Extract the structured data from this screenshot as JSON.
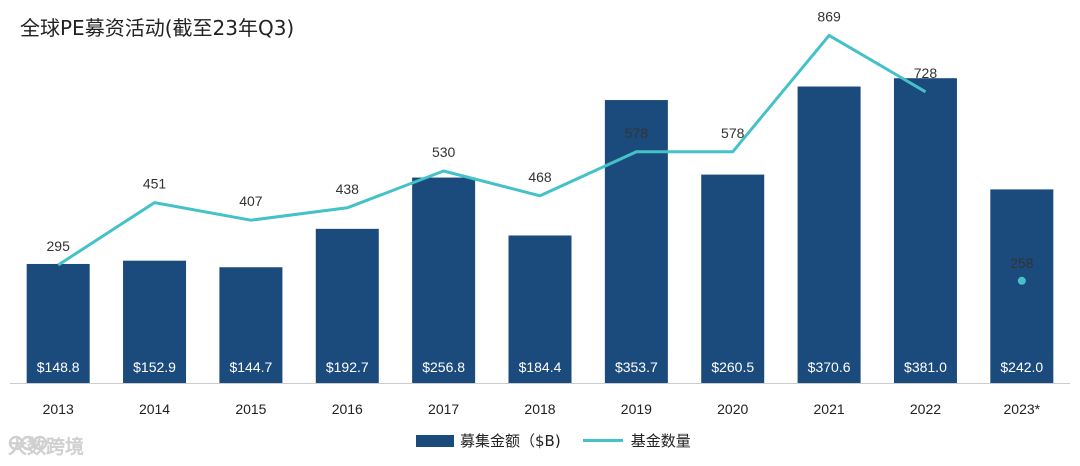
{
  "title": "全球PE募资活动(截至23年Q3)",
  "colors": {
    "bar": "#1b4b7c",
    "line": "#45c1c9",
    "label": "#333333"
  },
  "watermark": {
    "text": "大数跨境",
    "icon": "brand-logo-icon"
  },
  "chart_data": {
    "type": "bar",
    "title": "全球PE募资活动(截至23年Q3)",
    "categories": [
      "2013",
      "2014",
      "2015",
      "2016",
      "2017",
      "2018",
      "2019",
      "2020",
      "2021",
      "2022",
      "2023*"
    ],
    "series": [
      {
        "name": "募集金额（$B)",
        "kind": "bar",
        "values": [
          148.8,
          152.9,
          144.7,
          192.7,
          256.8,
          184.4,
          353.7,
          260.5,
          370.6,
          381.0,
          242.0
        ],
        "labels": [
          "$148.8",
          "$152.9",
          "$144.7",
          "$192.7",
          "$256.8",
          "$184.4",
          "$353.7",
          "$260.5",
          "$370.6",
          "$381.0",
          "$242.0"
        ]
      },
      {
        "name": "基金数量",
        "kind": "line",
        "values": [
          295,
          451,
          407,
          438,
          530,
          468,
          578,
          578,
          869,
          728,
          258
        ],
        "labels": [
          "295",
          "451",
          "407",
          "438",
          "530",
          "468",
          "578",
          "578",
          "869",
          "728",
          "258"
        ],
        "point_only_last": true
      }
    ],
    "bar_ylim": [
      0,
      400
    ],
    "line_ylim": [
      0,
      1000
    ],
    "legend": [
      "募集金额（$B)",
      "基金数量"
    ],
    "legend_position": "bottom-center",
    "grid": false
  }
}
